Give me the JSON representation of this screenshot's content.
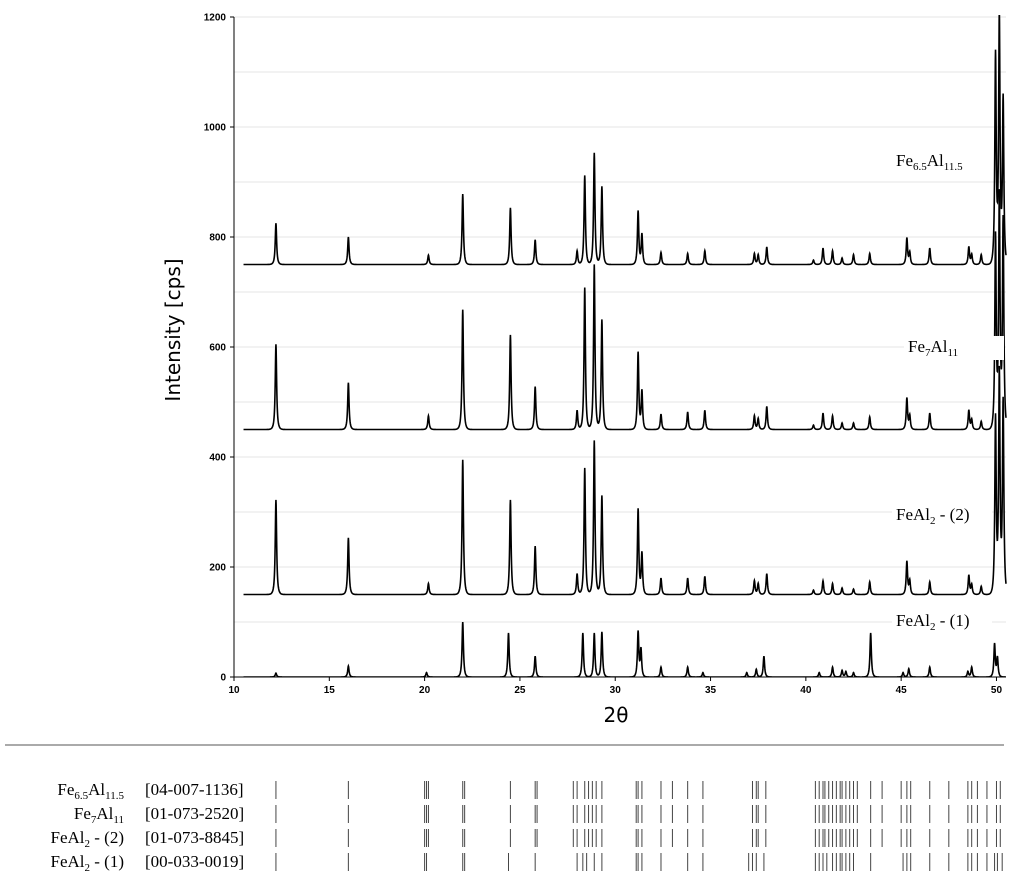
{
  "chart_data": {
    "type": "line",
    "xlabel": "2θ",
    "ylabel": "Intensity [cps]",
    "xlim": [
      10,
      50.5
    ],
    "ylim": [
      0,
      1200
    ],
    "x_ticks": [
      "10",
      "15",
      "20",
      "25",
      "30",
      "35",
      "40",
      "45",
      "50"
    ],
    "y_ticks": [
      "0",
      "200",
      "400",
      "600",
      "800",
      "1000",
      "1200"
    ],
    "grid": "horizontal",
    "series": [
      {
        "name": "FeAl2 - (1)",
        "label_main": "FeAl",
        "label_sub": "2",
        "label_suffix": " - (1)",
        "offset": 0,
        "peaks": [
          [
            12.2,
            7
          ],
          [
            16.0,
            20
          ],
          [
            20.1,
            8
          ],
          [
            22.0,
            100
          ],
          [
            24.4,
            80
          ],
          [
            25.8,
            38
          ],
          [
            28.3,
            80
          ],
          [
            28.9,
            80
          ],
          [
            29.3,
            82
          ],
          [
            31.2,
            82
          ],
          [
            31.35,
            50
          ],
          [
            32.4,
            18
          ],
          [
            33.8,
            18
          ],
          [
            34.6,
            8
          ],
          [
            36.9,
            8
          ],
          [
            37.4,
            14
          ],
          [
            37.8,
            38
          ],
          [
            40.7,
            8
          ],
          [
            41.4,
            18
          ],
          [
            41.9,
            12
          ],
          [
            42.1,
            10
          ],
          [
            42.5,
            8
          ],
          [
            43.4,
            80
          ],
          [
            45.1,
            8
          ],
          [
            45.4,
            15
          ],
          [
            46.5,
            18
          ],
          [
            48.5,
            10
          ],
          [
            48.7,
            18
          ],
          [
            49.9,
            60
          ],
          [
            50.05,
            35
          ]
        ]
      },
      {
        "name": "FeAl2 - (2)",
        "label_main": "FeAl",
        "label_sub": "2",
        "label_suffix": " - (2)",
        "offset": 150,
        "peaks": [
          [
            12.2,
            172
          ],
          [
            16.0,
            103
          ],
          [
            20.2,
            20
          ],
          [
            22.0,
            245
          ],
          [
            24.5,
            172
          ],
          [
            25.8,
            88
          ],
          [
            28.0,
            38
          ],
          [
            28.4,
            230
          ],
          [
            28.9,
            280
          ],
          [
            29.3,
            180
          ],
          [
            31.2,
            155
          ],
          [
            31.4,
            75
          ],
          [
            32.4,
            30
          ],
          [
            33.8,
            30
          ],
          [
            34.7,
            33
          ],
          [
            37.3,
            25
          ],
          [
            37.5,
            20
          ],
          [
            37.95,
            38
          ],
          [
            40.4,
            8
          ],
          [
            40.9,
            25
          ],
          [
            41.4,
            20
          ],
          [
            41.9,
            12
          ],
          [
            42.5,
            10
          ],
          [
            43.35,
            23
          ],
          [
            45.3,
            60
          ],
          [
            45.45,
            25
          ],
          [
            46.5,
            23
          ],
          [
            48.55,
            35
          ],
          [
            48.7,
            18
          ],
          [
            49.2,
            15
          ],
          [
            49.95,
            320
          ],
          [
            50.15,
            400
          ],
          [
            50.35,
            350
          ]
        ]
      },
      {
        "name": "Fe7Al11",
        "label_main": "Fe",
        "label_sub": "7",
        "label_main2": "Al",
        "label_sub2": "11",
        "offset": 450,
        "peaks": [
          [
            12.2,
            155
          ],
          [
            16.0,
            85
          ],
          [
            20.2,
            25
          ],
          [
            22.0,
            218
          ],
          [
            24.5,
            172
          ],
          [
            25.8,
            78
          ],
          [
            28.0,
            35
          ],
          [
            28.4,
            258
          ],
          [
            28.9,
            300
          ],
          [
            29.3,
            200
          ],
          [
            31.2,
            140
          ],
          [
            31.4,
            70
          ],
          [
            32.4,
            28
          ],
          [
            33.8,
            32
          ],
          [
            34.7,
            35
          ],
          [
            37.3,
            25
          ],
          [
            37.5,
            20
          ],
          [
            37.95,
            42
          ],
          [
            40.4,
            8
          ],
          [
            40.9,
            30
          ],
          [
            41.4,
            25
          ],
          [
            41.9,
            12
          ],
          [
            42.5,
            12
          ],
          [
            43.35,
            23
          ],
          [
            45.3,
            57
          ],
          [
            45.45,
            25
          ],
          [
            46.5,
            30
          ],
          [
            48.55,
            35
          ],
          [
            48.7,
            18
          ],
          [
            49.2,
            15
          ],
          [
            49.95,
            350
          ],
          [
            50.15,
            420
          ],
          [
            50.35,
            380
          ]
        ]
      },
      {
        "name": "Fe6.5Al11.5",
        "label_main": "Fe",
        "label_sub": "6.5",
        "label_main2": "Al",
        "label_sub2": "11.5",
        "offset": 750,
        "peaks": [
          [
            12.2,
            75
          ],
          [
            16.0,
            50
          ],
          [
            20.2,
            17
          ],
          [
            22.0,
            128
          ],
          [
            24.5,
            103
          ],
          [
            25.8,
            45
          ],
          [
            28.0,
            25
          ],
          [
            28.4,
            162
          ],
          [
            28.9,
            203
          ],
          [
            29.3,
            142
          ],
          [
            31.2,
            97
          ],
          [
            31.4,
            55
          ],
          [
            32.4,
            22
          ],
          [
            33.8,
            20
          ],
          [
            34.7,
            25
          ],
          [
            37.3,
            20
          ],
          [
            37.5,
            18
          ],
          [
            37.95,
            32
          ],
          [
            40.4,
            8
          ],
          [
            40.9,
            30
          ],
          [
            41.4,
            25
          ],
          [
            41.9,
            12
          ],
          [
            42.5,
            18
          ],
          [
            43.35,
            20
          ],
          [
            45.3,
            48
          ],
          [
            45.45,
            22
          ],
          [
            46.5,
            30
          ],
          [
            48.55,
            32
          ],
          [
            48.7,
            18
          ],
          [
            49.2,
            18
          ],
          [
            49.95,
            380
          ],
          [
            50.15,
            450
          ],
          [
            50.35,
            300
          ]
        ]
      }
    ]
  },
  "reference": {
    "rows": [
      {
        "label_main": "Fe",
        "label_sub": "6.5",
        "label_main2": "Al",
        "label_sub2": "11.5",
        "label_suffix": "",
        "card": "[04-007-1136]",
        "lines": [
          12.2,
          16.0,
          20.0,
          20.1,
          20.2,
          22.0,
          22.1,
          24.5,
          25.8,
          25.9,
          27.8,
          28.0,
          28.4,
          28.6,
          28.8,
          29.0,
          29.3,
          31.1,
          31.2,
          31.4,
          32.4,
          33.0,
          33.8,
          34.6,
          37.2,
          37.4,
          37.5,
          37.9,
          40.5,
          40.7,
          40.9,
          41.0,
          41.2,
          41.4,
          41.6,
          41.8,
          41.9,
          42.1,
          42.3,
          42.5,
          42.7,
          43.4,
          44.0,
          45.0,
          45.3,
          45.5,
          46.5,
          47.5,
          48.5,
          48.7,
          49.0,
          49.5,
          50.0,
          50.2
        ]
      },
      {
        "label_main": "Fe",
        "label_sub": "7",
        "label_main2": "Al",
        "label_sub2": "11",
        "label_suffix": "",
        "card": "[01-073-2520]",
        "lines": [
          12.2,
          16.0,
          20.0,
          20.1,
          20.2,
          22.0,
          22.1,
          24.5,
          25.8,
          25.9,
          27.8,
          28.0,
          28.4,
          28.6,
          28.8,
          29.0,
          29.3,
          31.1,
          31.2,
          31.4,
          32.4,
          33.0,
          33.8,
          34.6,
          37.2,
          37.4,
          37.5,
          37.9,
          40.5,
          40.7,
          40.9,
          41.0,
          41.2,
          41.4,
          41.6,
          41.8,
          41.9,
          42.1,
          42.3,
          42.5,
          42.7,
          43.4,
          44.0,
          45.0,
          45.3,
          45.5,
          46.5,
          47.5,
          48.5,
          48.7,
          49.0,
          49.5,
          50.0,
          50.2
        ]
      },
      {
        "label_main": "FeAl",
        "label_sub": "2",
        "label_main2": "",
        "label_sub2": "",
        "label_suffix": " - (2)",
        "card": "[01-073-8845]",
        "lines": [
          12.2,
          16.0,
          20.0,
          20.1,
          20.2,
          22.0,
          22.1,
          24.5,
          25.8,
          25.9,
          27.8,
          28.0,
          28.4,
          28.6,
          28.8,
          29.0,
          29.3,
          31.1,
          31.2,
          31.4,
          32.4,
          33.0,
          33.8,
          34.6,
          37.2,
          37.4,
          37.5,
          37.9,
          40.5,
          40.7,
          40.9,
          41.0,
          41.2,
          41.4,
          41.6,
          41.8,
          41.9,
          42.1,
          42.3,
          42.5,
          42.7,
          43.4,
          44.0,
          45.0,
          45.3,
          45.5,
          46.5,
          47.5,
          48.5,
          48.7,
          49.0,
          49.5,
          50.0,
          50.2
        ]
      },
      {
        "label_main": "FeAl",
        "label_sub": "2",
        "label_main2": "",
        "label_sub2": "",
        "label_suffix": " - (1)",
        "card": "[00-033-0019]",
        "lines": [
          12.2,
          16.0,
          20.0,
          20.1,
          22.0,
          22.1,
          24.4,
          25.8,
          28.0,
          28.3,
          28.5,
          28.9,
          29.3,
          31.1,
          31.2,
          31.4,
          32.4,
          33.8,
          34.6,
          37.0,
          37.2,
          37.4,
          37.8,
          40.5,
          40.7,
          40.9,
          41.1,
          41.4,
          41.6,
          41.8,
          41.9,
          42.1,
          42.3,
          42.5,
          43.4,
          45.1,
          45.3,
          45.5,
          46.5,
          47.5,
          48.5,
          48.7,
          49.0,
          49.5,
          49.9,
          50.05,
          50.3
        ]
      }
    ]
  }
}
